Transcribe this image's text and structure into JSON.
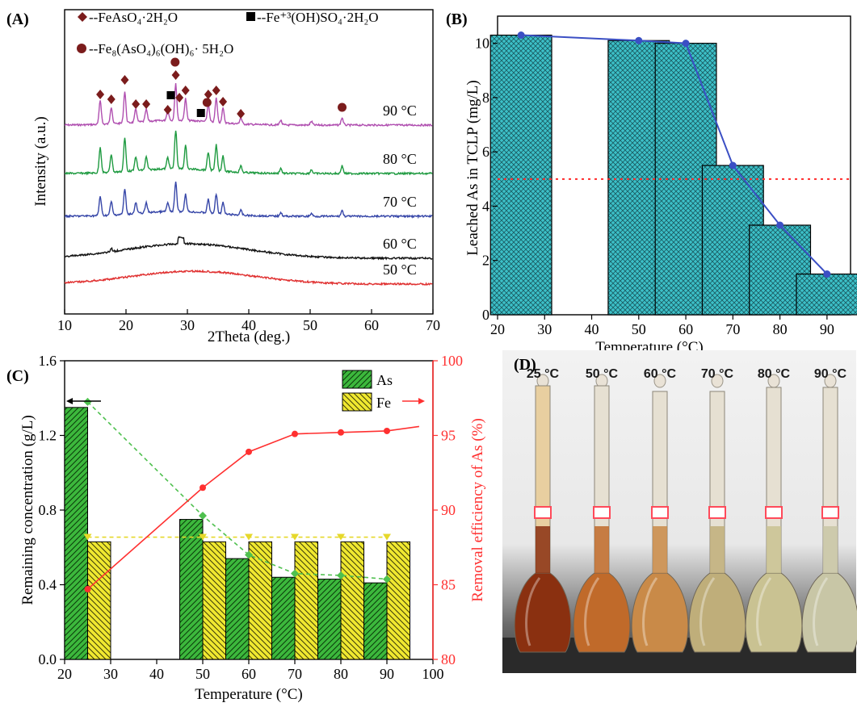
{
  "chart_data": [
    {
      "panel": "(A)",
      "type": "line",
      "xlabel": "2Theta (deg.)",
      "ylabel": "Intensity (a.u.)",
      "xlim": [
        10,
        70
      ],
      "xticks": [
        10,
        20,
        30,
        40,
        50,
        60,
        70
      ],
      "legend": [
        {
          "label": "--FeAsO₄·2H₂O",
          "marker": "diamond",
          "color": "#7b1c1c"
        },
        {
          "label": "--Fe⁺³(OH)SO₄·2H₂O",
          "marker": "square",
          "color": "#000000"
        },
        {
          "label": "--Fe₈(AsO₄)₆(OH)₆· 5H₂O",
          "marker": "circle",
          "color": "#7b1c1c"
        }
      ],
      "series": [
        {
          "name": "90 °C",
          "color": "#b04fb0"
        },
        {
          "name": "80 °C",
          "color": "#1e9a40"
        },
        {
          "name": "70 °C",
          "color": "#3646a8"
        },
        {
          "name": "60 °C",
          "color": "#111111"
        },
        {
          "name": "50 °C",
          "color": "#e03030"
        }
      ],
      "markers": [
        {
          "type": "diamond",
          "x": 15.8
        },
        {
          "type": "diamond",
          "x": 17.6
        },
        {
          "type": "diamond",
          "x": 19.8
        },
        {
          "type": "diamond",
          "x": 21.6
        },
        {
          "type": "diamond",
          "x": 23.3
        },
        {
          "type": "diamond",
          "x": 26.8
        },
        {
          "type": "diamond",
          "x": 28.1
        },
        {
          "type": "diamond",
          "x": 28.7
        },
        {
          "type": "diamond",
          "x": 29.7
        },
        {
          "type": "diamond",
          "x": 33.4
        },
        {
          "type": "diamond",
          "x": 34.7
        },
        {
          "type": "diamond",
          "x": 35.8
        },
        {
          "type": "diamond",
          "x": 38.7
        },
        {
          "type": "square",
          "x": 27.3
        },
        {
          "type": "square",
          "x": 32.2
        },
        {
          "type": "circle",
          "x": 28.0
        },
        {
          "type": "circle",
          "x": 33.2
        },
        {
          "type": "circle",
          "x": 55.2
        }
      ]
    },
    {
      "panel": "(B)",
      "type": "bar",
      "xlabel": "Temperature (°C)",
      "ylabel": "Leached As in TCLP (mg/L)",
      "xlim": [
        20,
        95
      ],
      "ylim": [
        0,
        11
      ],
      "xticks": [
        20,
        30,
        40,
        50,
        60,
        70,
        80,
        90
      ],
      "yticks": [
        0,
        2,
        4,
        6,
        8,
        10
      ],
      "x": [
        25,
        50,
        60,
        70,
        80,
        90
      ],
      "values": [
        10.3,
        10.1,
        10.0,
        5.5,
        3.3,
        1.5
      ],
      "reference_line": 5.0,
      "bar_color": "#3cc0c8",
      "line_color": "#3b4fc4"
    },
    {
      "panel": "(C)",
      "type": "bar",
      "xlabel": "Temperature (°C)",
      "ylabel": "Remaining concentration (g/L)",
      "ylabel_right": "Removal efficiency of As (%)",
      "xlim": [
        20,
        100
      ],
      "ylim": [
        0,
        1.6
      ],
      "ylim_right": [
        80,
        100
      ],
      "xticks": [
        20,
        30,
        40,
        50,
        60,
        70,
        80,
        90,
        100
      ],
      "yticks": [
        0.0,
        0.4,
        0.8,
        1.2,
        1.6
      ],
      "yticks_right": [
        80,
        85,
        90,
        95,
        100
      ],
      "x": [
        25,
        50,
        60,
        70,
        80,
        90
      ],
      "series": [
        {
          "name": "As",
          "values": [
            1.35,
            0.75,
            0.54,
            0.44,
            0.43,
            0.41
          ],
          "color": "#3cb83c"
        },
        {
          "name": "Fe",
          "values": [
            0.63,
            0.63,
            0.63,
            0.63,
            0.63,
            0.63
          ],
          "color": "#f0e830"
        }
      ],
      "removal_efficiency": [
        84.7,
        91.5,
        93.9,
        95.1,
        95.2,
        95.3
      ],
      "removal_color": "#ff3030"
    },
    {
      "panel": "(D)",
      "type": "photo",
      "labels": [
        "25 °C",
        "50 °C",
        "60 °C",
        "70 °C",
        "80 °C",
        "90 °C"
      ],
      "liquid_colors": [
        "#8a3010",
        "#c06a2a",
        "#c98a48",
        "#bfae7a",
        "#c9c292",
        "#c8c6a6"
      ]
    }
  ]
}
